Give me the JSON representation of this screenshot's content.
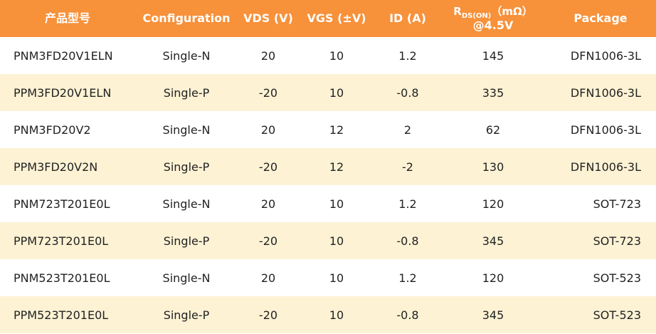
{
  "table": {
    "headers": {
      "product": "产品型号",
      "configuration": "Configuration",
      "vds": "VDS (V)",
      "vgs": "VGS (±V)",
      "id": "ID (A)",
      "rds_r": "R",
      "rds_sub": "DS(ON)",
      "rds_unit": "（mΩ）",
      "rds_cond": "@4.5V",
      "package": "Package"
    },
    "rows": [
      [
        "PNM3FD20V1ELN",
        "Single-N",
        "20",
        "10",
        "1.2",
        "145",
        "DFN1006-3L"
      ],
      [
        "PPM3FD20V1ELN",
        "Single-P",
        "-20",
        "10",
        "-0.8",
        "335",
        "DFN1006-3L"
      ],
      [
        "PNM3FD20V2",
        "Single-N",
        "20",
        "12",
        "2",
        "62",
        "DFN1006-3L"
      ],
      [
        "PPM3FD20V2N",
        "Single-P",
        "-20",
        "12",
        "-2",
        "130",
        "DFN1006-3L"
      ],
      [
        "PNM723T201E0L",
        "Single-N",
        "20",
        "10",
        "1.2",
        "120",
        "SOT-723"
      ],
      [
        "PPM723T201E0L",
        "Single-P",
        "-20",
        "10",
        "-0.8",
        "345",
        "SOT-723"
      ],
      [
        "PNM523T201E0L",
        "Single-N",
        "20",
        "10",
        "1.2",
        "120",
        "SOT-523"
      ],
      [
        "PPM523T201E0L",
        "Single-P",
        "-20",
        "10",
        "-0.8",
        "345",
        "SOT-523"
      ]
    ]
  },
  "colors": {
    "header_bg": "#f7913a",
    "stripe_bg": "#fdf2d4"
  }
}
